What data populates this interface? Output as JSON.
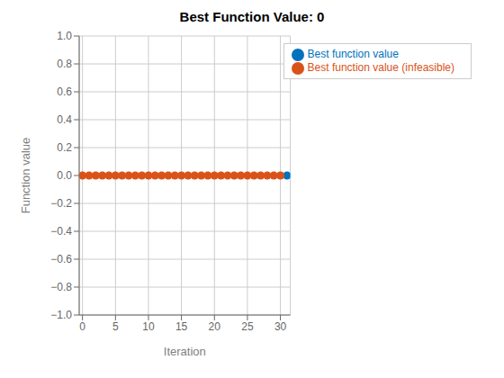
{
  "chart_data": {
    "type": "scatter",
    "title": "Best Function Value: 0",
    "x_label": "Iteration",
    "y_label": "Function value",
    "xlim": [
      -0.5,
      31.5
    ],
    "ylim": [
      -1,
      1
    ],
    "xticks": [
      0,
      5,
      10,
      15,
      20,
      25,
      30
    ],
    "yticks": [
      {
        "value": -1,
        "label": "−1.0"
      },
      {
        "value": -0.8,
        "label": "−0.8"
      },
      {
        "value": -0.6,
        "label": "−0.6"
      },
      {
        "value": -0.4,
        "label": "−0.4"
      },
      {
        "value": -0.2,
        "label": "−0.2"
      },
      {
        "value": 0,
        "label": "0.0"
      },
      {
        "value": 0.2,
        "label": "0.2"
      },
      {
        "value": 0.4,
        "label": "0.4"
      },
      {
        "value": 0.6,
        "label": "0.6"
      },
      {
        "value": 0.8,
        "label": "0.8"
      },
      {
        "value": 1,
        "label": "1.0"
      }
    ],
    "grid": true,
    "legend": "upper right",
    "series": [
      {
        "name": "Best function value",
        "color": "#0072BD",
        "x": [
          31
        ],
        "values": [
          0
        ]
      },
      {
        "name": "Best function value (infeasible)",
        "color": "#D95319",
        "x": [
          0,
          1,
          2,
          3,
          4,
          5,
          6,
          7,
          8,
          9,
          10,
          11,
          12,
          13,
          14,
          15,
          16,
          17,
          18,
          19,
          20,
          21,
          22,
          23,
          24,
          25,
          26,
          27,
          28,
          29,
          30
        ],
        "values": [
          0,
          0,
          0,
          0,
          0,
          0,
          0,
          0,
          0,
          0,
          0,
          0,
          0,
          0,
          0,
          0,
          0,
          0,
          0,
          0,
          0,
          0,
          0,
          0,
          0,
          0,
          0,
          0,
          0,
          0,
          0
        ]
      }
    ]
  }
}
